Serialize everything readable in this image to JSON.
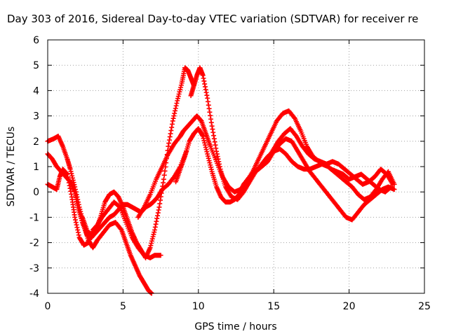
{
  "chart_data": {
    "type": "scatter",
    "title": "Day 303 of 2016, Sidereal Day-to-day VTEC variation (SDTVAR) for receiver re",
    "xlabel": "GPS time / hours",
    "ylabel": "SDTVAR / TECUs",
    "xlim": [
      0,
      25
    ],
    "ylim": [
      -4,
      6
    ],
    "xticks": [
      "0",
      "5",
      "10",
      "15",
      "20",
      "25"
    ],
    "yticks": [
      "-4",
      "-3",
      "-2",
      "-1",
      "0",
      "1",
      "2",
      "3",
      "4",
      "5",
      "6"
    ],
    "grid": true,
    "marker": "plus",
    "color": "#ff0000",
    "series": [
      {
        "x": [
          0.0,
          0.3,
          0.6,
          0.8,
          1.0,
          1.3,
          1.6,
          1.8,
          2.1,
          2.4,
          2.7,
          3.0,
          3.3,
          3.6,
          4.0,
          4.4,
          4.8,
          5.2,
          5.6,
          6.0,
          6.4,
          6.8,
          7.1,
          7.5
        ],
        "y": [
          0.3,
          0.2,
          0.1,
          0.6,
          0.9,
          0.7,
          -0.2,
          -1.0,
          -1.8,
          -2.1,
          -2.0,
          -1.5,
          -1.3,
          -1.0,
          -0.7,
          -0.4,
          -0.6,
          -1.2,
          -1.8,
          -2.2,
          -2.5,
          -2.6,
          -2.5,
          -2.5
        ]
      },
      {
        "x": [
          0.0,
          0.4,
          0.7,
          1.0,
          1.3,
          1.5,
          1.8,
          2.1,
          2.4,
          2.7,
          3.0,
          3.3,
          3.7,
          4.1,
          4.5,
          4.9,
          5.2,
          5.5,
          5.8,
          6.1,
          6.4,
          6.7,
          6.9
        ],
        "y": [
          2.0,
          2.1,
          2.2,
          1.8,
          1.3,
          0.9,
          0.2,
          -0.6,
          -1.3,
          -1.9,
          -2.2,
          -1.9,
          -1.6,
          -1.3,
          -1.2,
          -1.5,
          -2.0,
          -2.5,
          -2.9,
          -3.3,
          -3.6,
          -3.9,
          -4.0
        ]
      },
      {
        "x": [
          0.0,
          0.3,
          0.6,
          0.9,
          1.2,
          1.5,
          1.8,
          2.0,
          2.3,
          2.6,
          2.9,
          3.2,
          3.5,
          3.8,
          4.1,
          4.4,
          4.7,
          5.0,
          5.3,
          5.6,
          5.9,
          6.2,
          6.5,
          6.8,
          7.0,
          7.3,
          7.6,
          8.0,
          8.4,
          8.8,
          9.2
        ],
        "y": [
          1.5,
          1.3,
          1.0,
          0.8,
          0.6,
          0.4,
          0.0,
          -0.6,
          -1.2,
          -1.7,
          -1.8,
          -1.6,
          -1.4,
          -1.2,
          -1.0,
          -0.9,
          -0.7,
          -0.5,
          -0.5,
          -0.6,
          -0.7,
          -0.8,
          -0.6,
          -0.5,
          -0.4,
          -0.2,
          0.1,
          0.3,
          0.6,
          1.0,
          1.6
        ]
      },
      {
        "x": [
          2.3,
          2.6,
          2.9,
          3.2,
          3.5,
          3.8,
          4.1,
          4.4,
          4.7,
          5.0,
          5.3,
          5.6,
          5.9,
          6.2,
          6.5,
          6.8,
          7.1,
          7.4,
          7.7,
          8.0,
          8.3,
          8.6,
          8.9,
          9.1,
          9.3,
          9.5,
          9.7
        ],
        "y": [
          -1.0,
          -1.5,
          -1.8,
          -1.5,
          -1.0,
          -0.4,
          -0.1,
          0.0,
          -0.2,
          -0.6,
          -1.1,
          -1.6,
          -2.0,
          -2.3,
          -2.6,
          -2.2,
          -1.5,
          -0.6,
          0.5,
          1.8,
          2.8,
          3.6,
          4.3,
          4.9,
          4.8,
          4.5,
          4.2
        ]
      },
      {
        "x": [
          6.0,
          6.4,
          6.8,
          7.2,
          7.6,
          8.0,
          8.4,
          8.8,
          9.0,
          9.3,
          9.6,
          9.9,
          10.2,
          10.5,
          10.8,
          11.2,
          11.6,
          12.0,
          12.4,
          12.8,
          13.2,
          13.6,
          14.0,
          14.4,
          14.8,
          15.2,
          15.6,
          16.0,
          16.4,
          16.8,
          17.2,
          17.6,
          18.0,
          18.4,
          18.8,
          19.2,
          19.6,
          20.0,
          20.4,
          20.8,
          21.2,
          21.6,
          22.0,
          22.4,
          22.8
        ],
        "y": [
          -1.0,
          -0.6,
          -0.1,
          0.5,
          1.0,
          1.5,
          1.9,
          2.2,
          2.4,
          2.6,
          2.8,
          3.0,
          2.8,
          2.3,
          1.8,
          1.2,
          0.6,
          0.2,
          0.0,
          0.1,
          0.4,
          0.8,
          1.3,
          1.8,
          2.3,
          2.8,
          3.1,
          3.2,
          2.9,
          2.4,
          1.8,
          1.4,
          1.2,
          1.1,
          0.9,
          0.8,
          0.7,
          0.5,
          0.6,
          0.7,
          0.5,
          0.3,
          0.1,
          0.0,
          0.2
        ]
      },
      {
        "x": [
          8.5,
          8.8,
          9.1,
          9.4,
          9.7,
          10.0,
          10.3,
          10.6,
          10.9,
          11.2,
          11.5,
          11.8,
          12.1,
          12.4,
          12.7,
          13.0,
          13.4,
          13.8,
          14.2,
          14.6,
          15.0,
          15.4,
          15.8,
          16.2,
          16.6,
          17.0,
          17.4,
          17.8,
          18.2,
          18.6,
          19.0,
          19.4,
          19.8,
          20.2,
          20.6,
          21.0,
          21.4,
          21.8,
          22.2,
          22.6,
          23.0
        ],
        "y": [
          0.4,
          0.9,
          1.4,
          2.0,
          2.3,
          2.5,
          2.2,
          1.5,
          0.8,
          0.2,
          -0.2,
          -0.4,
          -0.4,
          -0.3,
          -0.1,
          0.3,
          0.6,
          0.8,
          1.0,
          1.2,
          1.6,
          1.9,
          2.1,
          2.0,
          1.6,
          1.2,
          0.8,
          0.5,
          0.2,
          -0.1,
          -0.4,
          -0.7,
          -1.0,
          -1.1,
          -0.8,
          -0.5,
          -0.3,
          -0.1,
          0.1,
          0.2,
          0.1
        ]
      },
      {
        "x": [
          9.5,
          9.7,
          9.9,
          10.1,
          10.3,
          10.6,
          10.9,
          11.2,
          11.5,
          11.8,
          12.2,
          12.6,
          13.0,
          13.4,
          13.8,
          14.2,
          14.6,
          15.0,
          15.4,
          15.8,
          16.2,
          16.6,
          17.0,
          17.4,
          17.8,
          18.2,
          18.6,
          19.0,
          19.4,
          19.8,
          20.2,
          20.6,
          21.0,
          21.4,
          21.8,
          22.2,
          22.6,
          23.0
        ],
        "y": [
          3.8,
          4.2,
          4.6,
          4.9,
          4.6,
          3.7,
          2.6,
          1.6,
          0.8,
          0.2,
          -0.2,
          -0.3,
          0.0,
          0.4,
          0.8,
          1.1,
          1.4,
          1.6,
          1.7,
          1.5,
          1.2,
          1.0,
          0.9,
          0.9,
          1.0,
          1.1,
          1.0,
          0.8,
          0.6,
          0.4,
          0.2,
          -0.1,
          -0.3,
          -0.2,
          0.1,
          0.5,
          0.8,
          0.3
        ]
      },
      {
        "x": [
          14.5,
          14.9,
          15.3,
          15.7,
          16.1,
          16.5,
          16.9,
          17.3,
          17.7,
          18.1,
          18.5,
          18.9,
          19.3,
          19.7,
          20.1,
          20.5,
          20.9,
          21.3,
          21.7,
          22.1,
          22.5,
          22.9
        ],
        "y": [
          1.2,
          1.6,
          2.0,
          2.3,
          2.5,
          2.2,
          1.8,
          1.5,
          1.3,
          1.2,
          1.1,
          1.2,
          1.1,
          0.9,
          0.7,
          0.5,
          0.3,
          0.4,
          0.6,
          0.9,
          0.7,
          0.3
        ]
      }
    ]
  }
}
